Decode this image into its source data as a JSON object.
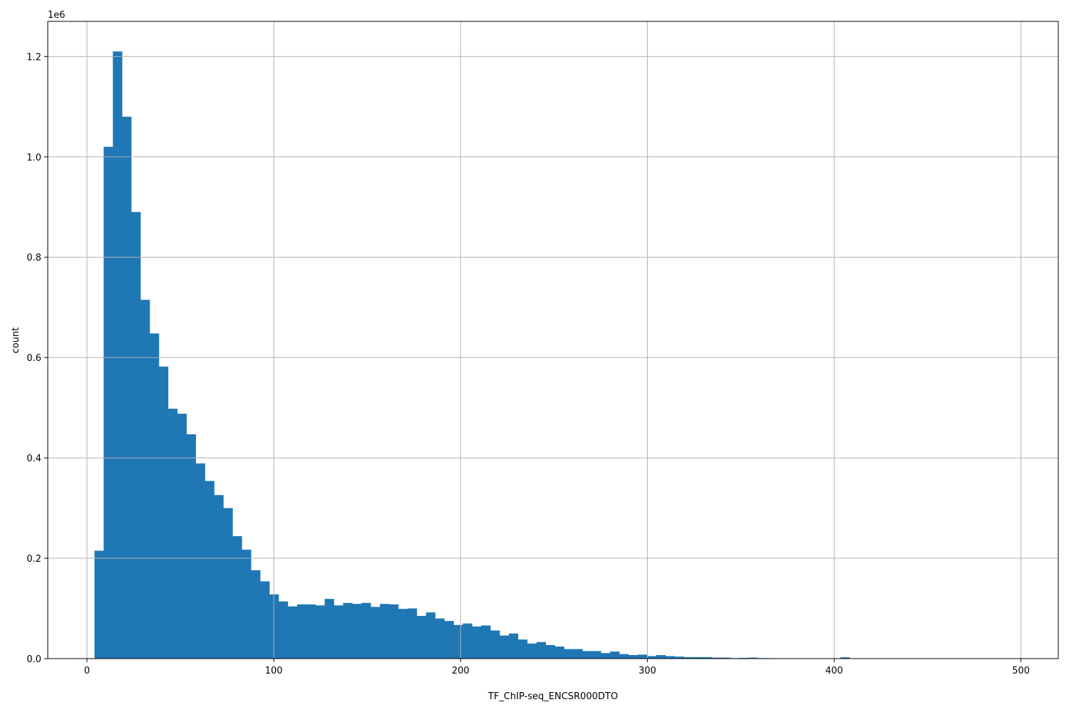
{
  "chart_data": {
    "type": "bar",
    "subtype": "histogram",
    "xlabel": "TF_ChIP-seq_ENCSR000DTO",
    "ylabel": "count",
    "y_offset_label": "1e6",
    "y_multiplier": 1000000,
    "xlim": [
      -21,
      520
    ],
    "ylim": [
      0,
      1270000
    ],
    "x_ticks": [
      0,
      100,
      200,
      300,
      400,
      500
    ],
    "x_tick_labels": [
      "0",
      "100",
      "200",
      "300",
      "400",
      "500"
    ],
    "y_ticks": [
      0,
      200000,
      400000,
      600000,
      800000,
      1000000,
      1200000
    ],
    "y_tick_labels": [
      "0.0",
      "0.2",
      "0.4",
      "0.6",
      "0.8",
      "1.0",
      "1.2"
    ],
    "grid": true,
    "bar_color": "#1f77b4",
    "bin_start": 4,
    "bin_width": 4.93,
    "values": [
      215000,
      1020000,
      1210000,
      1080000,
      890000,
      715000,
      648000,
      582000,
      498000,
      488000,
      447000,
      389000,
      354000,
      326000,
      300000,
      244000,
      217000,
      176000,
      154000,
      128000,
      114000,
      104000,
      108000,
      108000,
      106000,
      119000,
      106000,
      111000,
      109000,
      111000,
      103000,
      109000,
      108000,
      99000,
      100000,
      85000,
      92000,
      80000,
      75000,
      67000,
      70000,
      64000,
      66000,
      56000,
      46000,
      50000,
      38000,
      30000,
      33000,
      27000,
      24000,
      19000,
      19000,
      15000,
      15000,
      11000,
      14000,
      9000,
      7000,
      8000,
      5000,
      7000,
      5000,
      4000,
      3000,
      3000,
      3000,
      2000,
      2000,
      1000,
      1500,
      2000,
      1000,
      800,
      600,
      500,
      400,
      300,
      300,
      200,
      200,
      2500,
      200,
      150,
      100,
      100,
      80,
      60,
      50,
      40,
      30,
      20,
      20,
      10,
      10,
      10,
      10,
      10,
      10,
      10
    ]
  }
}
